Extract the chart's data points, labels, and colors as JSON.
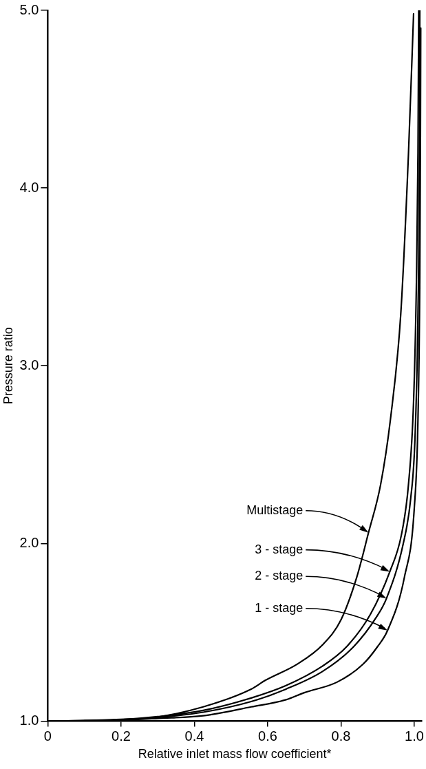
{
  "chart_data": {
    "type": "line",
    "xlabel": "Relative inlet mass flow coefficient*",
    "ylabel": "Pressure ratio",
    "xlim": [
      0,
      1.02
    ],
    "ylim": [
      1,
      5
    ],
    "xticks": [
      0,
      {
        "value": 0.2,
        "label": "0.2"
      },
      {
        "value": 0.4,
        "label": "0.4"
      },
      {
        "value": 0.6,
        "label": "0.6"
      },
      {
        "value": 0.8,
        "label": "0.8"
      },
      {
        "value": 1,
        "label": "1.0"
      }
    ],
    "yticks": [
      {
        "value": 1,
        "label": "1.0"
      },
      {
        "value": 2,
        "label": "2.0"
      },
      {
        "value": 3,
        "label": "3.0"
      },
      {
        "value": 4,
        "label": "4.0"
      },
      {
        "value": 5,
        "label": "5.0"
      }
    ],
    "grid": false,
    "legend": false,
    "marker": "none",
    "line_style": "solid",
    "series": [
      {
        "color": "#000000",
        "x": [
          0,
          0.1,
          0.2,
          0.29,
          0.424,
          0.555,
          0.594,
          0.68,
          0.75,
          0.8,
          0.843,
          0.875,
          0.908,
          0.935,
          0.963,
          0.984,
          0.998
        ],
        "values": [
          1,
          1.003,
          1.01,
          1.02,
          1.08,
          1.18,
          1.23,
          1.32,
          1.43,
          1.57,
          1.81,
          2.06,
          2.33,
          2.7,
          3.29,
          4.19,
          4.98
        ]
      },
      {
        "color": "#000000",
        "x": [
          0.05,
          0.2,
          0.3,
          0.424,
          0.555,
          0.65,
          0.75,
          0.816,
          0.88,
          0.933,
          0.965,
          0.984,
          0.998,
          1.006,
          1.01,
          1.012
        ],
        "values": [
          1.001,
          1.008,
          1.025,
          1.06,
          1.13,
          1.2,
          1.31,
          1.42,
          1.6,
          1.84,
          2.05,
          2.33,
          2.8,
          3.5,
          4.2,
          5
        ]
      },
      {
        "color": "#000000",
        "x": [
          0.1,
          0.2,
          0.3,
          0.424,
          0.555,
          0.65,
          0.75,
          0.835,
          0.895,
          0.924,
          0.97,
          0.99,
          1.002,
          1.01,
          1.014,
          1.015
        ],
        "values": [
          1.002,
          1.007,
          1.02,
          1.05,
          1.11,
          1.18,
          1.28,
          1.42,
          1.58,
          1.69,
          2,
          2.25,
          2.6,
          3.3,
          4.2,
          5
        ]
      },
      {
        "color": "#000000",
        "x": [
          0.15,
          0.2,
          0.3,
          0.424,
          0.555,
          0.65,
          0.7,
          0.79,
          0.86,
          0.9,
          0.927,
          0.973,
          1,
          1.01,
          1.015,
          1.018
        ],
        "values": [
          1.003,
          1.005,
          1.015,
          1.03,
          1.08,
          1.12,
          1.16,
          1.22,
          1.32,
          1.42,
          1.51,
          1.81,
          2.2,
          2.7,
          3.5,
          4.9
        ]
      }
    ],
    "annotations": [
      {
        "text": "Multistage",
        "x": 0.875,
        "y": 2.06
      },
      {
        "text": "3 - stage",
        "x": 0.933,
        "y": 1.84
      },
      {
        "text": "2 - stage",
        "x": 0.924,
        "y": 1.69
      },
      {
        "text": "1 - stage",
        "x": 0.927,
        "y": 1.51
      }
    ]
  }
}
